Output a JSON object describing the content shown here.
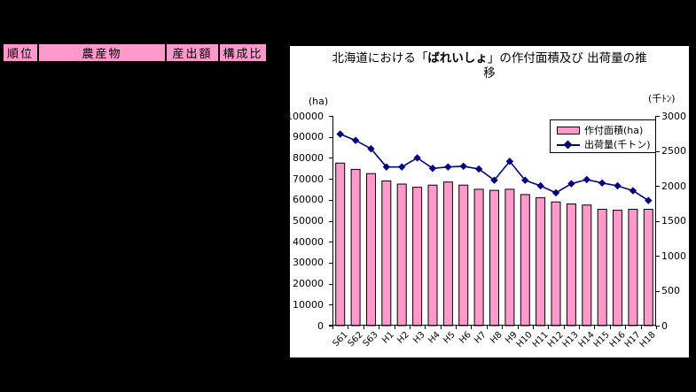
{
  "table": {
    "headers": [
      "順位",
      "農産物",
      "産出額",
      "構成比"
    ]
  },
  "chart": {
    "title": {
      "pre": "北海道における「",
      "emphasis": "ばれいしょ",
      "post": "」の作付面積及び 出荷量の推",
      "line2": "移"
    },
    "left_axis_caption": "(ha)",
    "right_axis_caption": "(千ﾄﾝ)",
    "legend": [
      {
        "label": "作付面積(ha)",
        "swatch": "bar-swatch",
        "color": "#FF99CC"
      },
      {
        "label": "出荷量(千トン)",
        "swatch": "line-diamond-swatch",
        "color": "#000080"
      }
    ]
  },
  "chart_data": {
    "type": "bar+line",
    "title": "北海道における「ばれいしょ」の作付面積及び 出荷量の推移",
    "categories": [
      "S61",
      "S62",
      "S63",
      "H1",
      "H2",
      "H3",
      "H4",
      "H5",
      "H6",
      "H7",
      "H8",
      "H9",
      "H10",
      "H11",
      "H12",
      "H13",
      "H14",
      "H15",
      "H16",
      "H17",
      "H18"
    ],
    "series": [
      {
        "name": "作付面積(ha)",
        "type": "bar",
        "axis": "left",
        "color": "#FF99CC",
        "values": [
          77500,
          74500,
          72500,
          69000,
          67500,
          66000,
          67000,
          68500,
          67000,
          65000,
          64500,
          65000,
          62500,
          61000,
          59000,
          58000,
          57500,
          55500,
          55000,
          55500,
          55500
        ]
      },
      {
        "name": "出荷量(千トン)",
        "type": "line",
        "axis": "right",
        "color": "#000080",
        "marker": "diamond",
        "values": [
          2740,
          2650,
          2530,
          2270,
          2270,
          2400,
          2250,
          2270,
          2280,
          2240,
          2080,
          2350,
          2080,
          2000,
          1900,
          2030,
          2090,
          2040,
          2000,
          1930,
          1790
        ]
      }
    ],
    "left_axis": {
      "min": 0,
      "max": 100000,
      "step": 10000,
      "ticks": [
        "0",
        "10000",
        "20000",
        "30000",
        "40000",
        "50000",
        "60000",
        "70000",
        "80000",
        "90000",
        "100000"
      ]
    },
    "right_axis": {
      "min": 0,
      "max": 3000,
      "step": 500,
      "ticks": [
        "0",
        "500",
        "1000",
        "1500",
        "2000",
        "2500",
        "3000"
      ]
    },
    "grid": false,
    "legend_position": "top-right-inside"
  }
}
